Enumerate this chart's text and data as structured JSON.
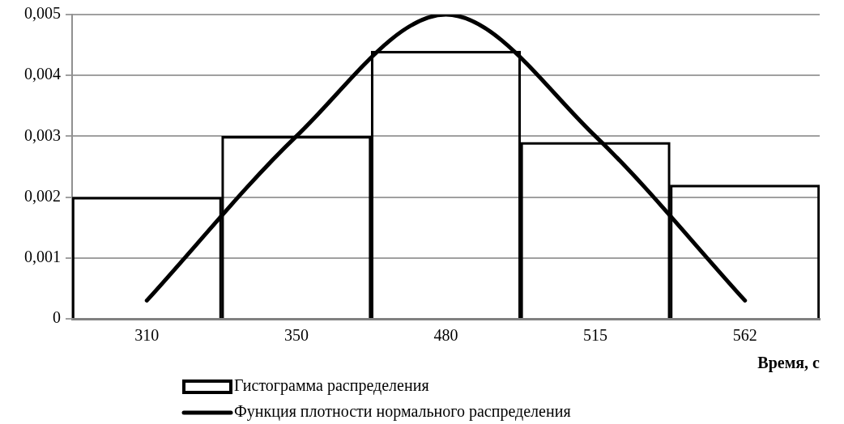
{
  "chart_data": {
    "type": "bar",
    "xlabel": "Время, с",
    "categories": [
      "310",
      "350",
      "480",
      "515",
      "562"
    ],
    "series": [
      {
        "name": "Гистограмма распределения",
        "color": "#000000",
        "values": [
          0.002,
          0.003,
          0.0044,
          0.0029,
          0.0022
        ]
      },
      {
        "name": "Функция плотности нормального распределения",
        "type": "line",
        "color": "#000000",
        "values": [
          0.0003,
          0.003,
          0.005,
          0.003,
          0.0003
        ]
      }
    ],
    "ylim": [
      0,
      0.005
    ],
    "yticks": [
      0,
      {
        "value": 0.001,
        "label": "0,001"
      },
      {
        "value": 0.002,
        "label": "0,002"
      },
      {
        "value": 0.003,
        "label": "0,003"
      },
      {
        "value": 0.004,
        "label": "0,004"
      },
      {
        "value": 0.005,
        "label": "0,005"
      }
    ],
    "grid": "y",
    "legend": "bottom",
    "marker": "none"
  }
}
